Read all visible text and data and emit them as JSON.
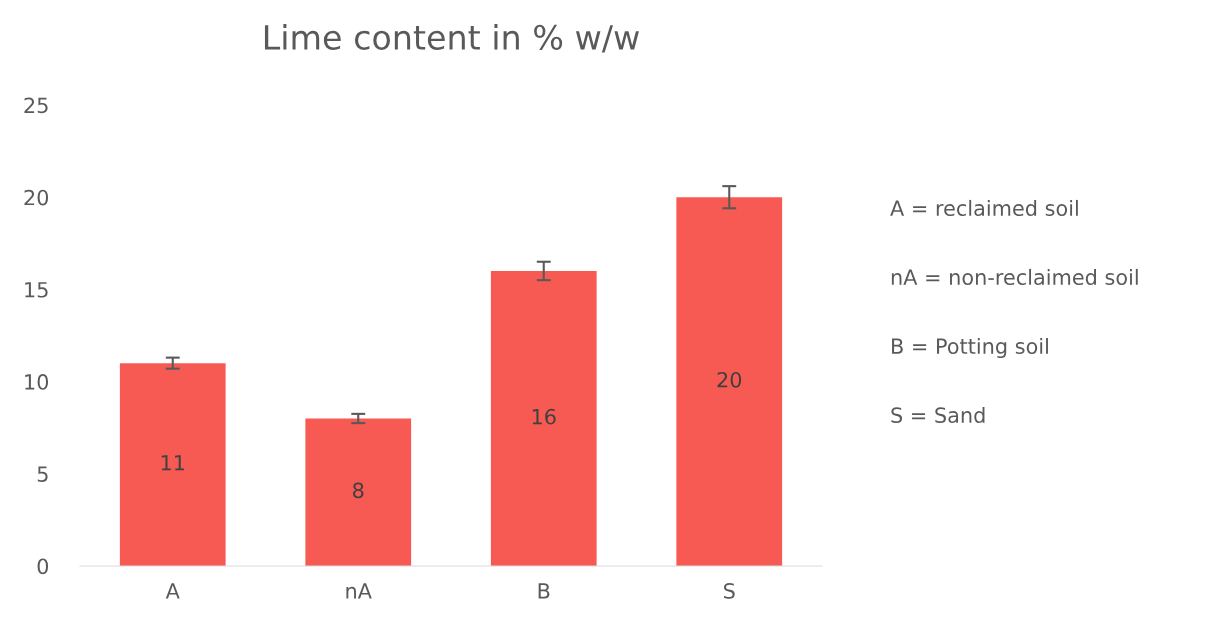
{
  "chart_data": {
    "type": "bar",
    "title": "Lime content in % w/w",
    "categories": [
      "A",
      "nA",
      "B",
      "S"
    ],
    "values": [
      11,
      8,
      16,
      20
    ],
    "color": "#f75a53",
    "errors": [
      0.3,
      0.25,
      0.5,
      0.6
    ],
    "ylim": [
      0,
      25
    ],
    "yticks": [
      0,
      5,
      10,
      15,
      20,
      25
    ],
    "data_labels": true,
    "grid": false,
    "annotations": [
      "A = reclaimed soil",
      "nA = non-reclaimed soil",
      "B = Potting soil",
      "S = Sand"
    ]
  }
}
